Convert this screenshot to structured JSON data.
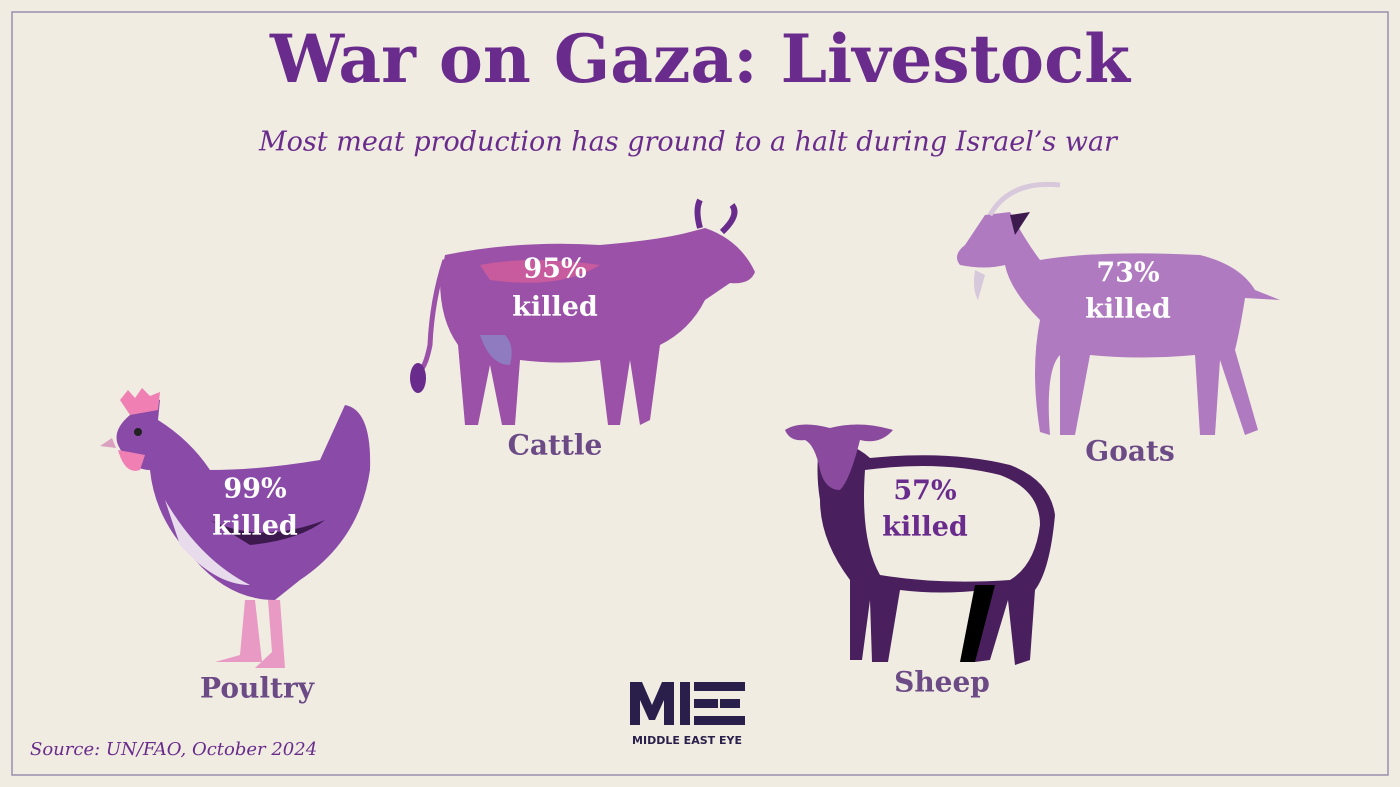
{
  "header": {
    "title": "War on Gaza: Livestock",
    "subtitle": "Most meat production has ground to a halt during Israel’s war"
  },
  "animals": [
    {
      "name": "Poultry",
      "stat": "99%",
      "word": "killed"
    },
    {
      "name": "Cattle",
      "stat": "95%",
      "word": "killed"
    },
    {
      "name": "Goats",
      "stat": "73%",
      "word": "killed"
    },
    {
      "name": "Sheep",
      "stat": "57%",
      "word": "killed"
    }
  ],
  "footer": {
    "source": "Source: UN/FAO, October 2024",
    "logo_text": "MIDDLE EAST EYE"
  }
}
